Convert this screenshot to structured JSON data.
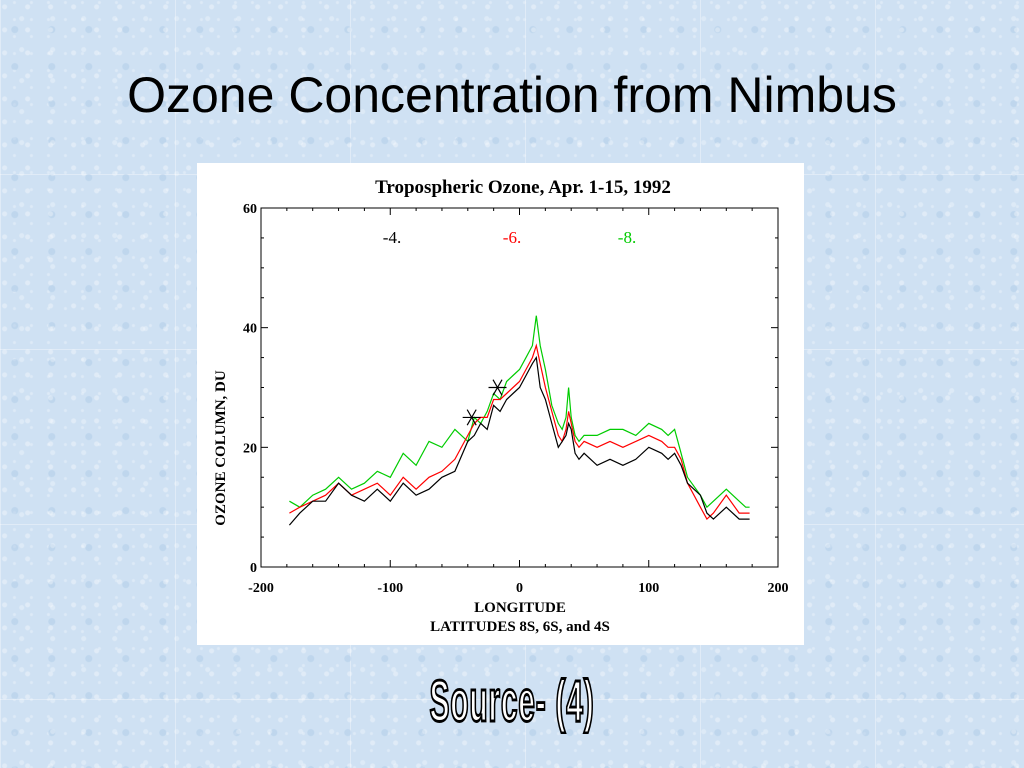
{
  "slide": {
    "title": "Ozone Concentration from Nimbus",
    "source": "Source- (4)"
  },
  "colors": {
    "lat4": "#000000",
    "lat6": "#ff0000",
    "lat8": "#00cc00",
    "background": "#cfe1f3"
  },
  "chart_data": {
    "type": "line",
    "title": "Tropospheric Ozone, Apr. 1-15, 1992",
    "xlabel": "LONGITUDE",
    "xlabel2": "LATITUDES  8S, 6S, and 4S",
    "ylabel": "OZONE COLUMN, DU",
    "xlim": [
      -200,
      200
    ],
    "ylim": [
      0,
      60
    ],
    "x_ticks": [
      -200,
      -100,
      0,
      100,
      200
    ],
    "y_ticks": [
      0,
      20,
      40,
      60
    ],
    "grid": false,
    "legend": [
      "-4.",
      "-6.",
      "-8."
    ],
    "series": [
      {
        "name": "-4.",
        "color": "#000000",
        "x": [
          -178,
          -170,
          -160,
          -150,
          -140,
          -130,
          -120,
          -110,
          -100,
          -90,
          -80,
          -70,
          -60,
          -50,
          -40,
          -35,
          -30,
          -25,
          -20,
          -15,
          -10,
          -5,
          0,
          5,
          10,
          13,
          16,
          20,
          25,
          30,
          33,
          36,
          38,
          40,
          43,
          46,
          50,
          60,
          70,
          80,
          90,
          100,
          110,
          115,
          120,
          125,
          130,
          140,
          145,
          150,
          160,
          170,
          175,
          178
        ],
        "values": [
          7,
          9,
          11,
          11,
          14,
          12,
          11,
          13,
          11,
          14,
          12,
          13,
          15,
          16,
          21,
          22,
          24,
          23,
          27,
          26,
          28,
          29,
          30,
          32,
          34,
          35,
          30,
          28,
          24,
          20,
          21,
          22,
          24,
          23,
          19,
          18,
          19,
          17,
          18,
          17,
          18,
          20,
          19,
          18,
          19,
          17,
          14,
          12,
          9,
          8,
          10,
          8,
          8,
          8
        ]
      },
      {
        "name": "-6.",
        "color": "#ff0000",
        "x": [
          -178,
          -170,
          -160,
          -150,
          -140,
          -130,
          -120,
          -110,
          -100,
          -90,
          -80,
          -70,
          -60,
          -50,
          -40,
          -35,
          -30,
          -25,
          -20,
          -15,
          -10,
          -5,
          0,
          5,
          10,
          13,
          16,
          20,
          25,
          30,
          33,
          36,
          38,
          40,
          43,
          46,
          50,
          60,
          70,
          80,
          90,
          100,
          110,
          115,
          120,
          125,
          130,
          140,
          145,
          150,
          160,
          170,
          175,
          178
        ],
        "values": [
          9,
          10,
          11,
          12,
          14,
          12,
          13,
          14,
          12,
          15,
          13,
          15,
          16,
          18,
          22,
          24,
          25,
          25,
          28,
          28,
          29,
          30,
          31,
          33,
          35,
          37,
          34,
          30,
          26,
          22,
          21,
          23,
          26,
          24,
          21,
          20,
          21,
          20,
          21,
          20,
          21,
          22,
          21,
          20,
          20,
          18,
          14,
          10,
          8,
          9,
          12,
          9,
          9,
          9
        ]
      },
      {
        "name": "-8.",
        "color": "#00cc00",
        "x": [
          -178,
          -170,
          -160,
          -150,
          -140,
          -130,
          -120,
          -110,
          -100,
          -90,
          -80,
          -70,
          -60,
          -50,
          -40,
          -35,
          -30,
          -25,
          -20,
          -15,
          -10,
          -5,
          0,
          5,
          10,
          13,
          16,
          20,
          25,
          30,
          33,
          36,
          38,
          40,
          43,
          46,
          50,
          60,
          70,
          80,
          90,
          100,
          110,
          115,
          120,
          125,
          130,
          140,
          145,
          150,
          160,
          170,
          175,
          178
        ],
        "values": [
          11,
          10,
          12,
          13,
          15,
          13,
          14,
          16,
          15,
          19,
          17,
          21,
          20,
          23,
          21,
          25,
          24,
          26,
          29,
          28,
          31,
          32,
          33,
          35,
          37,
          42,
          37,
          33,
          27,
          24,
          23,
          25,
          30,
          25,
          22,
          21,
          22,
          22,
          23,
          23,
          22,
          24,
          23,
          22,
          23,
          19,
          15,
          12,
          10,
          11,
          13,
          11,
          10,
          10
        ]
      }
    ],
    "markers": [
      {
        "x": -37,
        "y": 25
      },
      {
        "x": -17,
        "y": 30
      }
    ]
  }
}
